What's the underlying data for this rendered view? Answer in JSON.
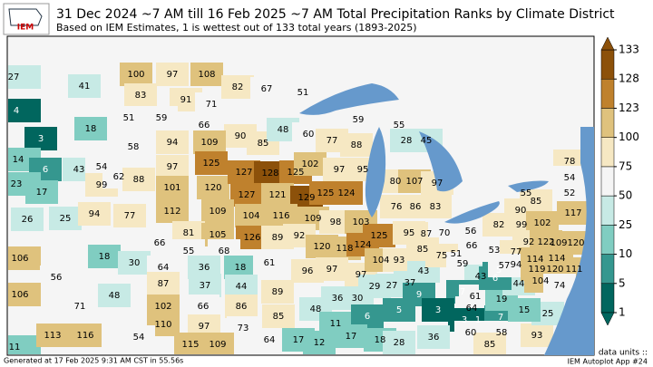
{
  "header": {
    "logo": "IEM",
    "title": "31 Dec 2024 ~7 AM till 16 Feb 2025 ~7 AM Total Precipitation Ranks by Climate District",
    "subtitle": "Based on IEM Estimates, 1 is wettest out of 133 total years (1893-2025)"
  },
  "colorbar": {
    "ticks": [
      1,
      5,
      10,
      25,
      50,
      75,
      100,
      123,
      128,
      133
    ],
    "colors": [
      "#01665e",
      "#35978f",
      "#80cdc1",
      "#c7eae5",
      "#f5f5f5",
      "#f6e8c3",
      "#dfc27d",
      "#bf812d",
      "#8c510a"
    ]
  },
  "districts": {
    "values": [
      27,
      41,
      4,
      18,
      3,
      100,
      97,
      108,
      83,
      91,
      71,
      51,
      59,
      66,
      82,
      67,
      51,
      90,
      85,
      48,
      60,
      59,
      55,
      77,
      88,
      28,
      45,
      58,
      94,
      109,
      14,
      6,
      43,
      54,
      23,
      17,
      99,
      62,
      88,
      97,
      125,
      101,
      120,
      127,
      128,
      125,
      102,
      97,
      95,
      80,
      107,
      97,
      127,
      121,
      129,
      125,
      124,
      26,
      25,
      94,
      77,
      112,
      109,
      104,
      116,
      109,
      98,
      103,
      76,
      86,
      83,
      66,
      81,
      105,
      126,
      89,
      92,
      120,
      118,
      124,
      125,
      95,
      87,
      70,
      56,
      66,
      51,
      55,
      68,
      106,
      56,
      18,
      30,
      64,
      36,
      18,
      61,
      96,
      97,
      97,
      104,
      93,
      43,
      85,
      75,
      59,
      43,
      5,
      106,
      87,
      37,
      44,
      48,
      71,
      102,
      66,
      86,
      89,
      85,
      48,
      36,
      30,
      29,
      27,
      37,
      9,
      7,
      61,
      110,
      97,
      73,
      11,
      6,
      5,
      3,
      64,
      3,
      1,
      7,
      19,
      11,
      113,
      116,
      54,
      115,
      109,
      64,
      17,
      12,
      17,
      18,
      28,
      36,
      60,
      58,
      85,
      93,
      25,
      15,
      44,
      6,
      78,
      54,
      52,
      55,
      85,
      90,
      117,
      82,
      99,
      102,
      53,
      77,
      92,
      122,
      109,
      120,
      94,
      114,
      114,
      57,
      119,
      120,
      111,
      104,
      74
    ]
  },
  "footer": {
    "generated": "Generated at 17 Feb 2025 9:31 AM CST in 55.56s",
    "units": "data units ::",
    "app": "IEM Autoplot App #24"
  }
}
